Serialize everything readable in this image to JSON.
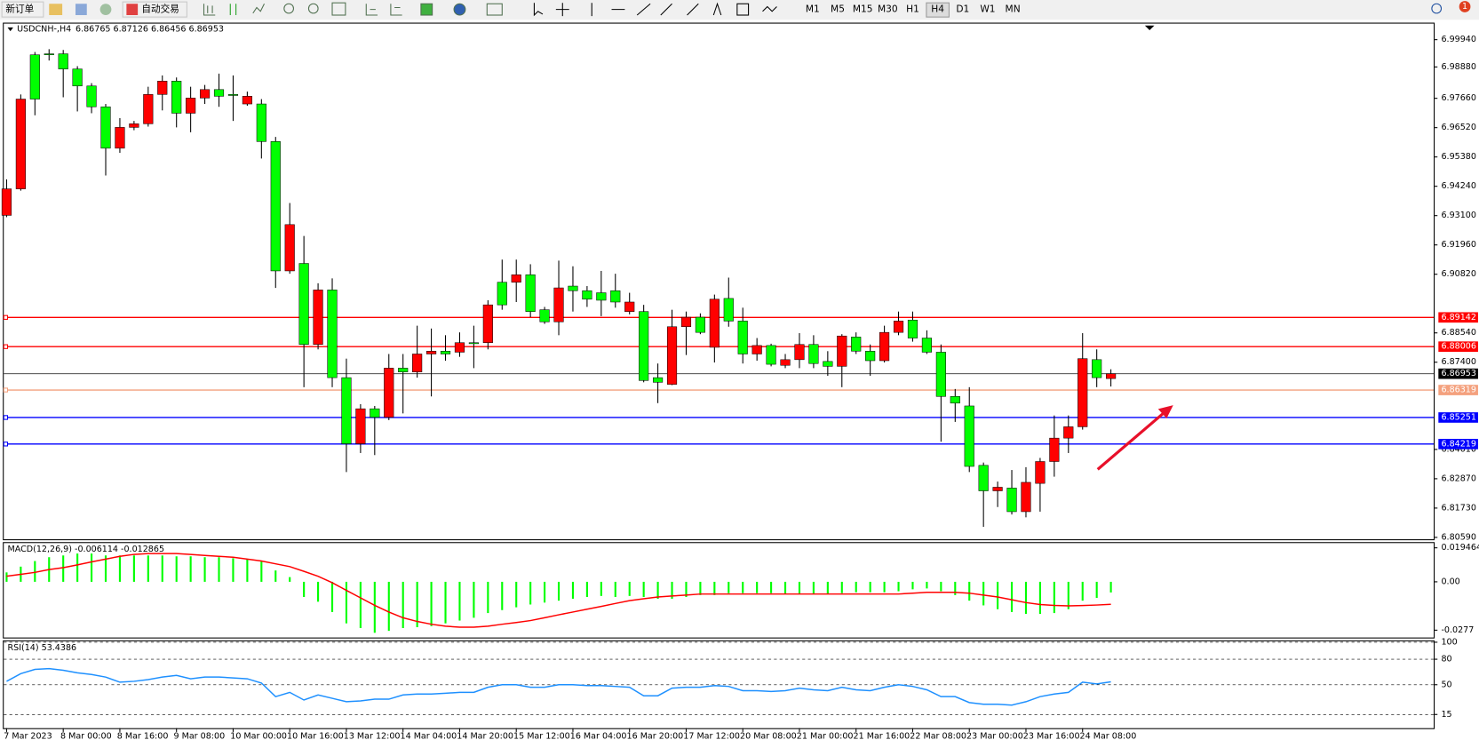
{
  "toolbar": {
    "buttons": [
      "新订单",
      "自动交易"
    ],
    "timeframes": [
      "M1",
      "M5",
      "M15",
      "M30",
      "H1",
      "H4",
      "D1",
      "W1",
      "MN"
    ],
    "notifications": "1"
  },
  "chart_data": [
    {
      "type": "candlestick",
      "title": "USDCNH-,H4",
      "subtitle": "6.86765 6.87126 6.86456 6.86953",
      "categories": [
        "7 Mar 2023",
        null,
        null,
        null,
        "8 Mar 00:00",
        null,
        null,
        null,
        "8 Mar 16:00",
        null,
        null,
        null,
        "9 Mar 08:00",
        null,
        null,
        null,
        "10 Mar 00:00",
        null,
        null,
        null,
        "10 Mar 16:00",
        null,
        null,
        null,
        "13 Mar 12:00",
        null,
        null,
        null,
        "14 Mar 04:00",
        null,
        null,
        null,
        "14 Mar 20:00",
        null,
        null,
        null,
        "15 Mar 12:00",
        null,
        null,
        null,
        "16 Mar 04:00",
        null,
        null,
        null,
        "16 Mar 20:00",
        null,
        null,
        null,
        "17 Mar 12:00",
        null,
        null,
        null,
        "20 Mar 08:00",
        null,
        null,
        null,
        "21 Mar 00:00",
        null,
        null,
        null,
        "21 Mar 16:00",
        null,
        null,
        null,
        "22 Mar 08:00",
        null,
        null,
        null,
        "23 Mar 00:00",
        null,
        null,
        null,
        "23 Mar 16:00",
        null,
        null,
        null,
        "24 Mar 08:00",
        null,
        null
      ],
      "open": [
        6.9311,
        6.9414,
        6.9935,
        6.9939,
        6.9939,
        6.988,
        6.9814,
        6.9733,
        6.9572,
        6.9653,
        6.9667,
        6.9781,
        6.9833,
        6.9708,
        6.9767,
        6.98,
        6.9781,
        6.9744,
        6.9744,
        6.9598,
        6.9095,
        6.9124,
        6.8809,
        6.9021,
        6.868,
        6.8423,
        6.8559,
        6.8526,
        6.8717,
        6.8702,
        6.8772,
        6.8783,
        6.8779,
        6.8816,
        6.8816,
        6.9051,
        6.9051,
        6.908,
        6.8944,
        6.8897,
        6.9036,
        6.9018,
        6.901,
        6.9018,
        6.8937,
        6.8937,
        6.868,
        6.8654,
        6.8878,
        6.8915,
        6.8798,
        6.8988,
        6.89,
        6.8772,
        6.8805,
        6.8728,
        6.875,
        6.8809,
        6.8743,
        6.8724,
        6.8838,
        6.8783,
        6.8746,
        6.8856,
        6.8904,
        6.8834,
        6.8779,
        6.8607,
        6.857,
        6.8339,
        6.824,
        6.8251,
        6.8159,
        6.8269,
        6.8354,
        6.8445,
        6.8489,
        6.875,
        6.86765
      ],
      "high": [
        6.9451,
        6.9781,
        6.9946,
        6.9957,
        6.9954,
        6.9891,
        6.9825,
        6.9744,
        6.9689,
        6.9678,
        6.9811,
        6.9855,
        6.9847,
        6.9811,
        6.9818,
        6.9862,
        6.9855,
        6.9792,
        6.9763,
        6.9616,
        6.9359,
        6.9231,
        6.9047,
        6.9066,
        6.8754,
        6.8577,
        6.857,
        6.8772,
        6.8772,
        6.8882,
        6.8871,
        6.8845,
        6.8856,
        6.8882,
        6.8981,
        6.9139,
        6.9139,
        6.9121,
        6.8955,
        6.9135,
        6.9113,
        6.9036,
        6.9095,
        6.9084,
        6.901,
        6.8963,
        6.8735,
        6.8944,
        6.8937,
        6.893,
        6.9003,
        6.9069,
        6.8952,
        6.8834,
        6.8812,
        6.8772,
        6.8853,
        6.8845,
        6.8783,
        6.8849,
        6.8856,
        6.8809,
        6.8882,
        6.8937,
        6.8937,
        6.8864,
        6.8809,
        6.8636,
        6.8643,
        6.835,
        6.8276,
        6.8321,
        6.8332,
        6.8368,
        6.8533,
        6.8533,
        6.8853,
        6.879,
        6.87126
      ],
      "low": [
        6.9304,
        6.9407,
        6.97,
        6.9913,
        6.977,
        6.9715,
        6.9708,
        6.9466,
        6.9554,
        6.9642,
        6.9656,
        6.9719,
        6.9653,
        6.9634,
        6.9744,
        6.9733,
        6.9678,
        6.9737,
        6.9532,
        6.9029,
        6.9084,
        6.8643,
        6.879,
        6.8643,
        6.8313,
        6.8387,
        6.8379,
        6.8515,
        6.8541,
        6.868,
        6.8607,
        6.8746,
        6.8761,
        6.8717,
        6.879,
        6.8944,
        6.8974,
        6.8915,
        6.8889,
        6.8845,
        6.8937,
        6.8955,
        6.8919,
        6.8952,
        6.8926,
        6.8662,
        6.8581,
        6.8651,
        6.8768,
        6.8849,
        6.8739,
        6.8878,
        6.8735,
        6.8746,
        6.8724,
        6.8717,
        6.8717,
        6.8717,
        6.8687,
        6.8643,
        6.8772,
        6.8687,
        6.8739,
        6.8845,
        6.882,
        6.8772,
        6.8431,
        6.8508,
        6.8313,
        6.81,
        6.8177,
        6.8148,
        6.8137,
        6.8159,
        6.8295,
        6.8387,
        6.8478,
        6.8643,
        6.86456
      ],
      "close": [
        6.9414,
        6.9763,
        6.9763,
        6.9935,
        6.988,
        6.9814,
        6.9733,
        6.9572,
        6.9653,
        6.9667,
        6.9781,
        6.9833,
        6.9708,
        6.9767,
        6.98,
        6.9774,
        6.9777,
        6.9774,
        6.9598,
        6.9095,
        6.9275,
        6.8809,
        6.9021,
        6.868,
        6.8423,
        6.8559,
        6.8526,
        6.8717,
        6.8702,
        6.8772,
        6.8783,
        6.8772,
        6.8816,
        6.8812,
        6.8963,
        6.8963,
        6.908,
        6.8937,
        6.8897,
        6.9029,
        6.9018,
        6.8985,
        6.8981,
        6.8974,
        6.8974,
        6.8669,
        6.8662,
        6.8878,
        6.8915,
        6.8856,
        6.8985,
        6.89,
        6.8772,
        6.8805,
        6.8732,
        6.875,
        6.8809,
        6.8735,
        6.8724,
        6.8842,
        6.8783,
        6.8746,
        6.8856,
        6.89,
        6.8834,
        6.8779,
        6.8607,
        6.8581,
        6.8335,
        6.824,
        6.8254,
        6.8159,
        6.8273,
        6.8354,
        6.8445,
        6.8489,
        6.8754,
        6.868,
        6.86953
      ],
      "up_color": "#ff0000",
      "down_color": "#00ff00",
      "ylim": [
        6.8059,
        6.9994
      ],
      "yticks": [
        {
          "value": 6.9994,
          "label": "6.99940"
        },
        {
          "value": 6.9888,
          "label": "6.98880"
        },
        {
          "value": 6.9766,
          "label": "6.97660"
        },
        {
          "value": 6.9652,
          "label": "6.96520"
        },
        {
          "value": 6.9538,
          "label": "6.95380"
        },
        {
          "value": 6.9424,
          "label": "6.94240"
        },
        {
          "value": 6.931,
          "label": "6.93100"
        },
        {
          "value": 6.9196,
          "label": "6.91960"
        },
        {
          "value": 6.9082,
          "label": "6.90820"
        },
        {
          "value": 6.8854,
          "label": "6.88540"
        },
        {
          "value": 6.874,
          "label": "6.87400"
        },
        {
          "value": 6.8401,
          "label": "6.84010"
        },
        {
          "value": 6.8287,
          "label": "6.82870"
        },
        {
          "value": 6.8173,
          "label": "6.81730"
        },
        {
          "value": 6.8059,
          "label": "6.80590"
        }
      ],
      "levels": [
        {
          "value": 6.89142,
          "color": "#ff0000"
        },
        {
          "value": 6.88006,
          "color": "#ff0000"
        },
        {
          "value": 6.86319,
          "color": "#f4a17e"
        },
        {
          "value": 6.85251,
          "color": "#0000ff"
        },
        {
          "value": 6.84219,
          "color": "#0000ff"
        }
      ],
      "current": {
        "value": 6.86953,
        "color": "#000000"
      }
    },
    {
      "type": "macd",
      "title": "MACD(12,26,9) -0.006114 -0.012865",
      "series": [
        {
          "color": "#00ff00",
          "values": [
            0.0054,
            0.0087,
            0.0119,
            0.0141,
            0.0151,
            0.0162,
            0.0162,
            0.0151,
            0.0151,
            0.0151,
            0.0151,
            0.0151,
            0.0146,
            0.0146,
            0.0141,
            0.0141,
            0.0135,
            0.013,
            0.0119,
            0.0065,
            0.0027,
            -0.0087,
            -0.0114,
            -0.0173,
            -0.0238,
            -0.0265,
            -0.0292,
            -0.0281,
            -0.0265,
            -0.026,
            -0.0254,
            -0.0238,
            -0.0222,
            -0.0206,
            -0.0179,
            -0.0162,
            -0.0146,
            -0.013,
            -0.0119,
            -0.0108,
            -0.0097,
            -0.0087,
            -0.0081,
            -0.0087,
            -0.0081,
            -0.0087,
            -0.0097,
            -0.0097,
            -0.0087,
            -0.0076,
            -0.0076,
            -0.0065,
            -0.0065,
            -0.0065,
            -0.0065,
            -0.007,
            -0.007,
            -0.007,
            -0.007,
            -0.0065,
            -0.006,
            -0.006,
            -0.006,
            -0.0054,
            -0.0043,
            -0.0038,
            -0.0054,
            -0.0076,
            -0.0108,
            -0.0135,
            -0.0157,
            -0.0173,
            -0.0184,
            -0.0184,
            -0.0179,
            -0.0157,
            -0.0108,
            -0.0092,
            -0.0061
          ]
        },
        {
          "color": "#ff0000",
          "values": [
            0.0032,
            0.0043,
            0.0054,
            0.007,
            0.0081,
            0.0097,
            0.0114,
            0.013,
            0.0146,
            0.0157,
            0.0162,
            0.0162,
            0.0162,
            0.0157,
            0.0151,
            0.0146,
            0.0141,
            0.013,
            0.0119,
            0.0103,
            0.0087,
            0.006,
            0.0032,
            -0.0005,
            -0.0049,
            -0.0092,
            -0.0135,
            -0.0173,
            -0.0206,
            -0.0227,
            -0.0243,
            -0.0254,
            -0.026,
            -0.026,
            -0.0254,
            -0.0243,
            -0.0233,
            -0.0222,
            -0.0206,
            -0.0189,
            -0.0173,
            -0.0157,
            -0.0141,
            -0.0124,
            -0.0108,
            -0.0097,
            -0.0087,
            -0.0081,
            -0.0076,
            -0.007,
            -0.007,
            -0.007,
            -0.007,
            -0.007,
            -0.007,
            -0.007,
            -0.007,
            -0.007,
            -0.007,
            -0.007,
            -0.007,
            -0.007,
            -0.007,
            -0.007,
            -0.0065,
            -0.006,
            -0.006,
            -0.006,
            -0.0065,
            -0.0076,
            -0.0087,
            -0.0103,
            -0.0119,
            -0.013,
            -0.0135,
            -0.0138,
            -0.0136,
            -0.0133,
            -0.0129
          ]
        }
      ],
      "ylim": [
        -0.0319,
        0.0222
      ],
      "yticks": [
        0.019464,
        {
          "value": 0,
          "label": "0.00"
        },
        -0.0277
      ]
    },
    {
      "type": "line",
      "title": "RSI(14) 53.4386",
      "series": [
        {
          "color": "#1e90ff",
          "values": [
            54,
            63,
            68,
            69,
            67,
            64,
            62,
            59,
            53,
            54,
            56,
            59,
            61,
            57,
            59,
            59,
            58,
            57,
            52,
            36,
            41,
            32,
            38,
            34,
            30,
            31,
            33,
            33,
            38,
            39,
            39,
            40,
            41,
            41,
            47,
            50,
            50,
            47,
            47,
            50,
            50,
            49,
            49,
            48,
            47,
            37,
            37,
            46,
            47,
            47,
            49,
            48,
            43,
            43,
            42,
            43,
            46,
            44,
            43,
            47,
            44,
            43,
            47,
            50,
            48,
            44,
            36,
            36,
            29,
            27,
            27,
            26,
            30,
            36,
            39,
            41,
            53,
            51,
            53.4386
          ]
        }
      ],
      "ylim": [
        0,
        100
      ],
      "yticks": [
        100,
        80,
        50,
        15
      ],
      "grid": true
    }
  ]
}
